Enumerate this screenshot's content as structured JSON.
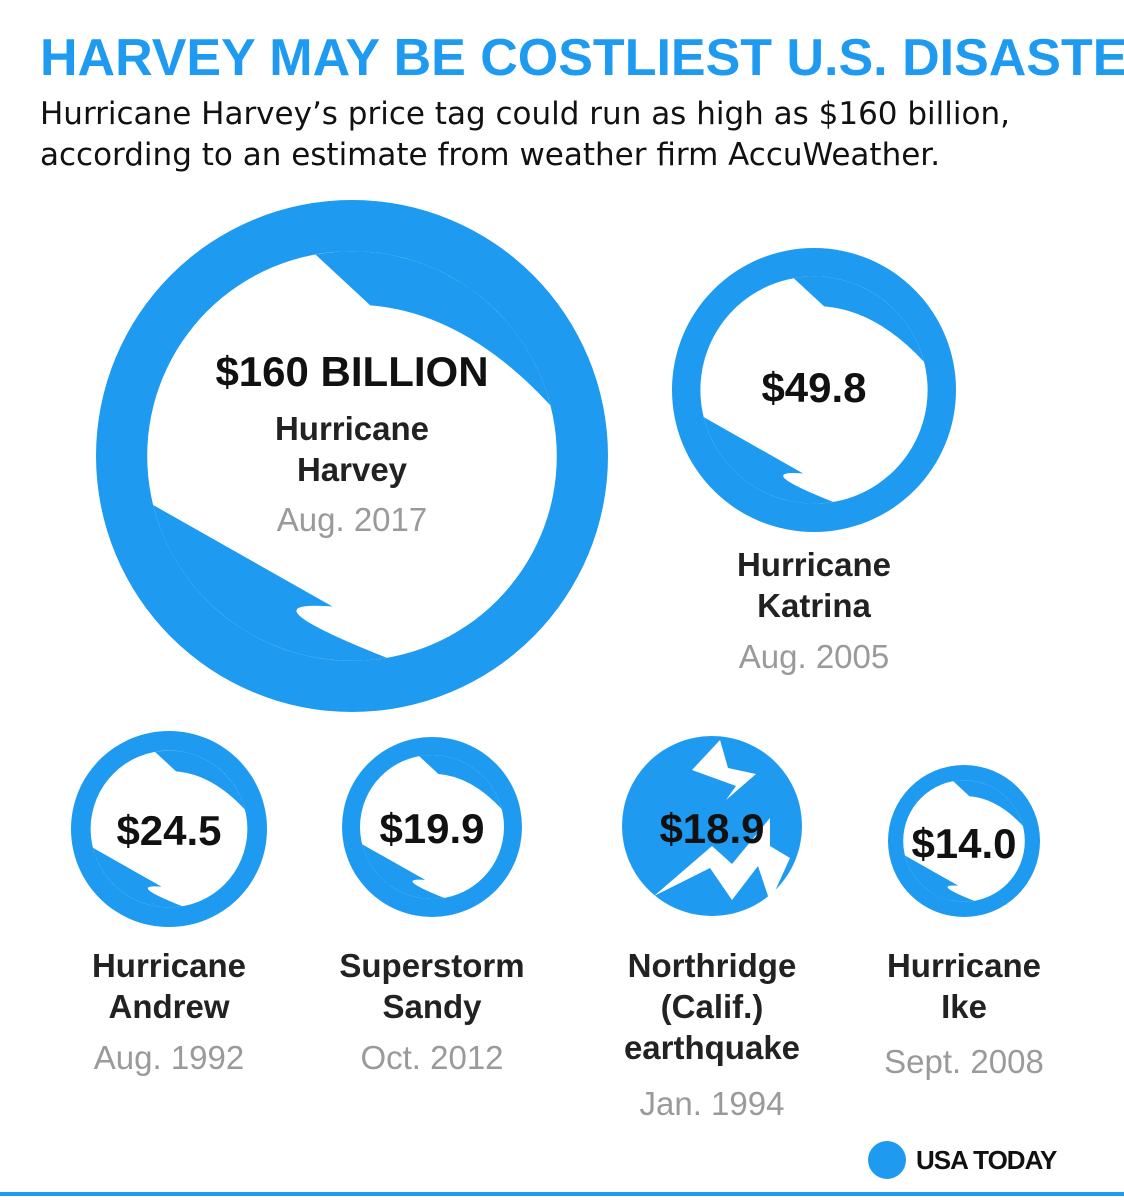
{
  "header": {
    "title": "HARVEY MAY BE COSTLIEST U.S. DISASTER",
    "subtitle": "Hurricane Harvey’s price tag could run as high as $160 billion, according to an estimate from weather firm AccuWeather."
  },
  "colors": {
    "accent": "#1e9bf0",
    "value_text": "#111111",
    "date_text": "#9a9a9a"
  },
  "chart_data": {
    "type": "bubble",
    "value_unit": "billion dollars",
    "items": [
      {
        "id": "harvey",
        "value": 160.0,
        "value_label": "$160 BILLION",
        "name_lines": [
          "Hurricane",
          "Harvey"
        ],
        "date": "Aug. 2017",
        "icon": "hurricane-swirl-icon"
      },
      {
        "id": "katrina",
        "value": 49.8,
        "value_label": "$49.8",
        "name_lines": [
          "Hurricane",
          "Katrina"
        ],
        "date": "Aug. 2005",
        "icon": "hurricane-swirl-icon"
      },
      {
        "id": "andrew",
        "value": 24.5,
        "value_label": "$24.5",
        "name_lines": [
          "Hurricane",
          "Andrew"
        ],
        "date": "Aug. 1992",
        "icon": "hurricane-swirl-icon"
      },
      {
        "id": "sandy",
        "value": 19.9,
        "value_label": "$19.9",
        "name_lines": [
          "Superstorm",
          "Sandy"
        ],
        "date": "Oct. 2012",
        "icon": "hurricane-swirl-icon"
      },
      {
        "id": "northridge",
        "value": 18.9,
        "value_label": "$18.9",
        "name_lines": [
          "Northridge",
          "(Calif.)",
          "earthquake"
        ],
        "date": "Jan. 1994",
        "icon": "earthquake-icon"
      },
      {
        "id": "ike",
        "value": 14.0,
        "value_label": "$14.0",
        "name_lines": [
          "Hurricane",
          "Ike"
        ],
        "date": "Sept. 2008",
        "icon": "hurricane-swirl-icon"
      }
    ]
  },
  "logo": {
    "text": "USA TODAY"
  }
}
